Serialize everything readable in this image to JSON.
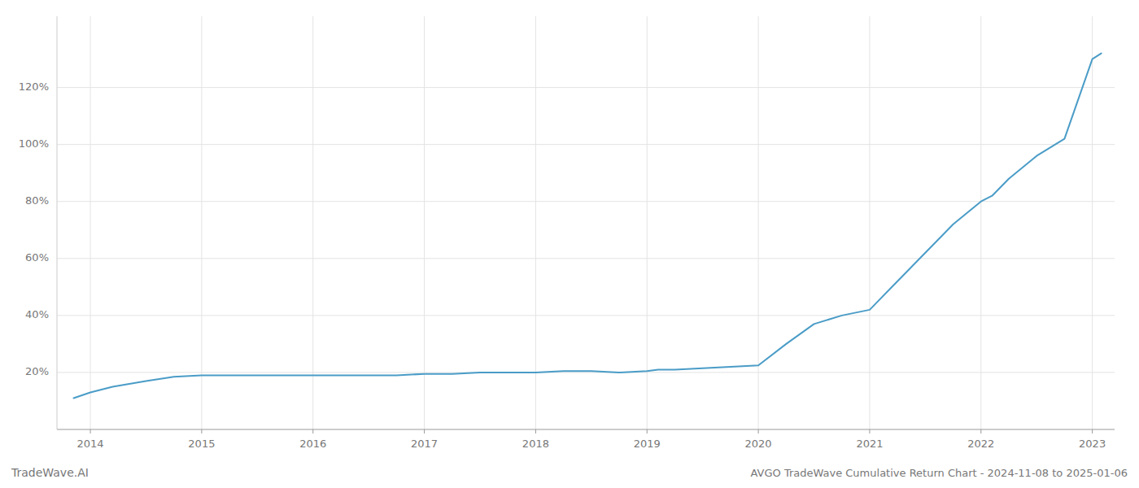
{
  "chart_data": {
    "type": "line",
    "title": "AVGO TradeWave Cumulative Return Chart - 2024-11-08 to 2025-01-06",
    "annotations": [
      "TradeWave.AI"
    ],
    "color": "#4a9cc7",
    "grid": true,
    "x": [
      2013.85,
      2014.0,
      2014.2,
      2014.5,
      2014.75,
      2015.0,
      2015.25,
      2015.5,
      2015.75,
      2016.0,
      2016.25,
      2016.5,
      2016.75,
      2017.0,
      2017.25,
      2017.5,
      2017.75,
      2018.0,
      2018.25,
      2018.5,
      2018.75,
      2019.0,
      2019.1,
      2019.25,
      2019.5,
      2019.75,
      2020.0,
      2020.25,
      2020.5,
      2020.75,
      2021.0,
      2021.25,
      2021.5,
      2021.75,
      2022.0,
      2022.1,
      2022.25,
      2022.5,
      2022.75,
      2023.0,
      2023.08
    ],
    "values": [
      11,
      13,
      15,
      17,
      18.5,
      19,
      19,
      19,
      19,
      19,
      19,
      19,
      19,
      19.5,
      19.5,
      20,
      20,
      20,
      20.5,
      20.5,
      20,
      20.5,
      21,
      21,
      21.5,
      22,
      22.5,
      30,
      37,
      40,
      42,
      52,
      62,
      72,
      80,
      82,
      88,
      96,
      102,
      130,
      132
    ],
    "xlim": [
      2013.7,
      2023.2
    ],
    "xticks": [
      2014,
      2015,
      2016,
      2017,
      2018,
      2019,
      2020,
      2021,
      2022,
      2023
    ],
    "ylim": [
      0,
      145
    ],
    "yticks": [
      {
        "value": 20,
        "label": "20%"
      },
      {
        "value": 40,
        "label": "40%"
      },
      {
        "value": 60,
        "label": "60%"
      },
      {
        "value": 80,
        "label": "80%"
      },
      {
        "value": 100,
        "label": "100%"
      },
      {
        "value": 120,
        "label": "120%"
      }
    ]
  }
}
